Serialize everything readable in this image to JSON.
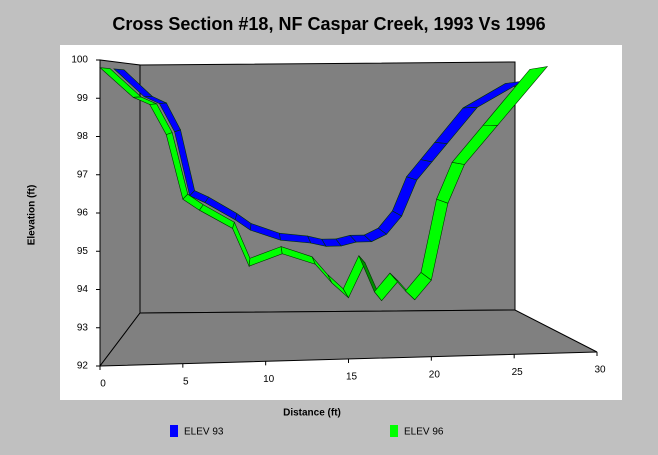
{
  "chart_data": {
    "type": "ribbon3d",
    "title": "Cross Section #18, NF Caspar Creek, 1993 Vs 1996",
    "x_label": "Distance (ft)",
    "y_label": "Elevation (ft)",
    "x": [
      0,
      2,
      3,
      4,
      5,
      6,
      8,
      9,
      11,
      13,
      14,
      15,
      16,
      17,
      18,
      19,
      20,
      21,
      22,
      24,
      27
    ],
    "series": [
      {
        "name": "ELEV 93",
        "color": "#0000ff",
        "values": [
          99.8,
          99,
          98.8,
          98,
          96.2,
          96,
          95.5,
          95.2,
          94.9,
          94.8,
          94.7,
          94.7,
          94.8,
          94.8,
          95,
          95.5,
          96.5,
          97,
          97.5,
          98.5,
          99.2
        ]
      },
      {
        "name": "ELEV 96",
        "color": "#00ff00",
        "values": [
          99.8,
          99,
          98.8,
          98,
          96.3,
          96,
          95.5,
          94.5,
          94.8,
          94.5,
          94,
          93.6,
          94.5,
          93.5,
          94,
          93.5,
          94,
          96,
          97,
          98,
          99.5
        ]
      }
    ],
    "xlim": [
      0,
      30
    ],
    "xticks": [
      0,
      5,
      10,
      15,
      20,
      25,
      30
    ],
    "ylim": [
      92,
      100
    ],
    "yticks": [
      92,
      93,
      94,
      95,
      96,
      97,
      98,
      99,
      100
    ]
  }
}
